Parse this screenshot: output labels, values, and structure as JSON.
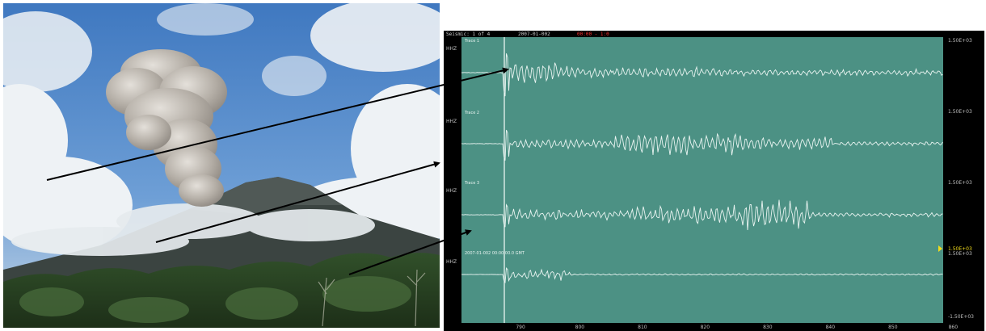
{
  "seismogram": {
    "header": [
      "Seismic: 1 of 4",
      "2007-01-002",
      "00:00 - 1:0"
    ],
    "x_ticks": [
      [
        "790",
        0.032
      ],
      [
        "800",
        0.155
      ],
      [
        "810",
        0.285
      ],
      [
        "820",
        0.415
      ],
      [
        "830",
        0.545
      ],
      [
        "840",
        0.675
      ],
      [
        "850",
        0.805
      ],
      [
        "860",
        0.93
      ]
    ],
    "right_ticks": [
      "1.50E+03",
      "1.50E+03",
      "1.50E+03",
      "1.50E+03",
      "-1.50E+03"
    ],
    "left_ticks": [
      "HHZ",
      "HHZ",
      "HHZ",
      "HHZ"
    ],
    "trace_labels": [
      "Trace 1",
      "Trace 2",
      "Trace 3",
      "2007-01-002 00:00:00.0 GMT"
    ],
    "marker_value": "1.50E+03",
    "colors": {
      "background": "#4c9184",
      "trace": "#e9f4f1",
      "frame": "#000000",
      "marker": "#f2dc1a"
    }
  },
  "photo": {
    "subject": "volcano eruption plume",
    "colors": {
      "sky": "#4f86c8",
      "cloud": "#e8eef3",
      "plume": "#b7b2aa",
      "mountain": "#3d4542",
      "forest": "#2f4a26"
    }
  }
}
